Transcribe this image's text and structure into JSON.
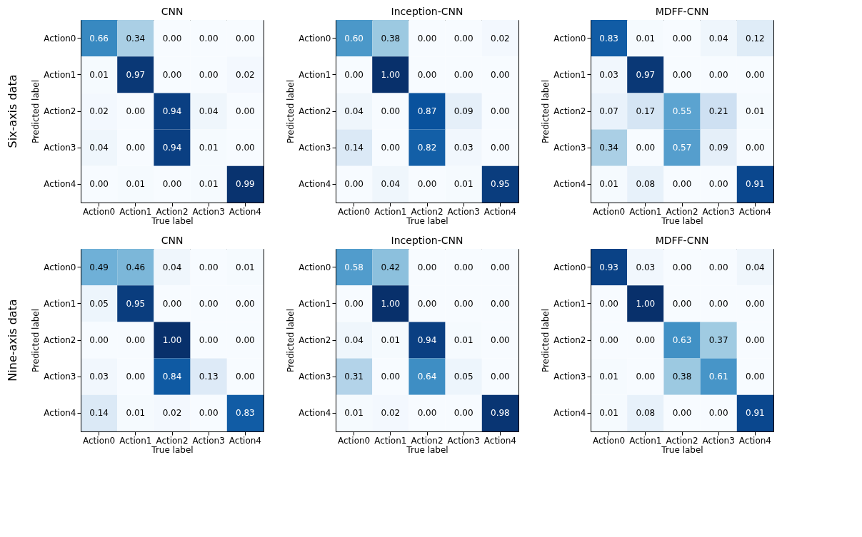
{
  "chart_data": [
    {
      "type": "heatmap",
      "title": "CNN",
      "xlabel": "True label",
      "ylabel": "Predicted label",
      "annotations": [
        "Six-axis data"
      ],
      "data_labels": true,
      "categories": [
        "Action0",
        "Action1",
        "Action2",
        "Action3",
        "Action4"
      ],
      "y_categories": [
        "Action0",
        "Action1",
        "Action2",
        "Action3",
        "Action4"
      ],
      "cells": [
        [
          0.66,
          0.34,
          0.0,
          0.0,
          0.0
        ],
        [
          0.01,
          0.97,
          0.0,
          0.0,
          0.02
        ],
        [
          0.02,
          0.0,
          0.94,
          0.04,
          0.0
        ],
        [
          0.04,
          0.0,
          0.94,
          0.01,
          0.0
        ],
        [
          0.0,
          0.01,
          0.0,
          0.01,
          0.99
        ]
      ],
      "cell_labels": [
        [
          "0.66",
          "0.34",
          "0.00",
          "0.00",
          "0.00"
        ],
        [
          "0.01",
          "0.97",
          "0.00",
          "0.00",
          "0.02"
        ],
        [
          "0.02",
          "0.00",
          "0.94",
          "0.04",
          "0.00"
        ],
        [
          "0.04",
          "0.00",
          "0.94",
          "0.01",
          "0.00"
        ],
        [
          "0.00",
          "0.01",
          "0.00",
          "0.01",
          "0.99"
        ]
      ]
    },
    {
      "type": "heatmap",
      "title": "Inception-CNN",
      "xlabel": "True label",
      "ylabel": "Predicted label",
      "data_labels": true,
      "categories": [
        "Action0",
        "Action1",
        "Action2",
        "Action3",
        "Action4"
      ],
      "y_categories": [
        "Action0",
        "Action1",
        "Action2",
        "Action3",
        "Action4"
      ],
      "cells": [
        [
          0.6,
          0.38,
          0.0,
          0.0,
          0.02
        ],
        [
          0.0,
          1.0,
          0.0,
          0.0,
          0.0
        ],
        [
          0.04,
          0.0,
          0.87,
          0.09,
          0.0
        ],
        [
          0.14,
          0.0,
          0.82,
          0.03,
          0.0
        ],
        [
          0.0,
          0.04,
          0.0,
          0.01,
          0.95
        ]
      ],
      "cell_labels": [
        [
          "0.60",
          "0.38",
          "0.00",
          "0.00",
          "0.02"
        ],
        [
          "0.00",
          "1.00",
          "0.00",
          "0.00",
          "0.00"
        ],
        [
          "0.04",
          "0.00",
          "0.87",
          "0.09",
          "0.00"
        ],
        [
          "0.14",
          "0.00",
          "0.82",
          "0.03",
          "0.00"
        ],
        [
          "0.00",
          "0.04",
          "0.00",
          "0.01",
          "0.95"
        ]
      ]
    },
    {
      "type": "heatmap",
      "title": "MDFF-CNN",
      "xlabel": "True label",
      "ylabel": "Predicted label",
      "data_labels": true,
      "categories": [
        "Action0",
        "Action1",
        "Action2",
        "Action3",
        "Action4"
      ],
      "y_categories": [
        "Action0",
        "Action1",
        "Action2",
        "Action3",
        "Action4"
      ],
      "cells": [
        [
          0.83,
          0.01,
          0.0,
          0.04,
          0.12
        ],
        [
          0.03,
          0.97,
          0.0,
          0.0,
          0.0
        ],
        [
          0.07,
          0.17,
          0.55,
          0.21,
          0.01
        ],
        [
          0.34,
          0.0,
          0.57,
          0.09,
          0.0
        ],
        [
          0.01,
          0.08,
          0.0,
          0.0,
          0.91
        ]
      ],
      "cell_labels": [
        [
          "0.83",
          "0.01",
          "0.00",
          "0.04",
          "0.12"
        ],
        [
          "0.03",
          "0.97",
          "0.00",
          "0.00",
          "0.00"
        ],
        [
          "0.07",
          "0.17",
          "0.55",
          "0.21",
          "0.01"
        ],
        [
          "0.34",
          "0.00",
          "0.57",
          "0.09",
          "0.00"
        ],
        [
          "0.01",
          "0.08",
          "0.00",
          "0.00",
          "0.91"
        ]
      ]
    },
    {
      "type": "heatmap",
      "title": "CNN",
      "xlabel": "True label",
      "ylabel": "Predicted label",
      "annotations": [
        "Nine-axis data"
      ],
      "data_labels": true,
      "categories": [
        "Action0",
        "Action1",
        "Action2",
        "Action3",
        "Action4"
      ],
      "y_categories": [
        "Action0",
        "Action1",
        "Action2",
        "Action3",
        "Action4"
      ],
      "cells": [
        [
          0.49,
          0.46,
          0.04,
          0.0,
          0.01
        ],
        [
          0.05,
          0.95,
          0.0,
          0.0,
          0.0
        ],
        [
          0.0,
          0.0,
          1.0,
          0.0,
          0.0
        ],
        [
          0.03,
          0.0,
          0.84,
          0.13,
          0.0
        ],
        [
          0.14,
          0.01,
          0.02,
          0.0,
          0.83
        ]
      ],
      "cell_labels": [
        [
          "0.49",
          "0.46",
          "0.04",
          "0.00",
          "0.01"
        ],
        [
          "0.05",
          "0.95",
          "0.00",
          "0.00",
          "0.00"
        ],
        [
          "0.00",
          "0.00",
          "1.00",
          "0.00",
          "0.00"
        ],
        [
          "0.03",
          "0.00",
          "0.84",
          "0.13",
          "0.00"
        ],
        [
          "0.14",
          "0.01",
          "0.02",
          "0.00",
          "0.83"
        ]
      ]
    },
    {
      "type": "heatmap",
      "title": "Inception-CNN",
      "xlabel": "True label",
      "ylabel": "Predicted label",
      "data_labels": true,
      "categories": [
        "Action0",
        "Action1",
        "Action2",
        "Action3",
        "Action4"
      ],
      "y_categories": [
        "Action0",
        "Action1",
        "Action2",
        "Action3",
        "Action4"
      ],
      "cells": [
        [
          0.58,
          0.42,
          0.0,
          0.0,
          0.0
        ],
        [
          0.0,
          1.0,
          0.0,
          0.0,
          0.0
        ],
        [
          0.04,
          0.01,
          0.94,
          0.01,
          0.0
        ],
        [
          0.31,
          0.0,
          0.64,
          0.05,
          0.0
        ],
        [
          0.01,
          0.02,
          0.0,
          0.0,
          0.98
        ]
      ],
      "cell_labels": [
        [
          "0.58",
          "0.42",
          "0.00",
          "0.00",
          "0.00"
        ],
        [
          "0.00",
          "1.00",
          "0.00",
          "0.00",
          "0.00"
        ],
        [
          "0.04",
          "0.01",
          "0.94",
          "0.01",
          "0.00"
        ],
        [
          "0.31",
          "0.00",
          "0.64",
          "0.05",
          "0.00"
        ],
        [
          "0.01",
          "0.02",
          "0.00",
          "0.00",
          "0.98"
        ]
      ]
    },
    {
      "type": "heatmap",
      "title": "MDFF-CNN",
      "xlabel": "True label",
      "ylabel": "Predicted label",
      "data_labels": true,
      "categories": [
        "Action0",
        "Action1",
        "Action2",
        "Action3",
        "Action4"
      ],
      "y_categories": [
        "Action0",
        "Action1",
        "Action2",
        "Action3",
        "Action4"
      ],
      "cells": [
        [
          0.93,
          0.03,
          0.0,
          0.0,
          0.04
        ],
        [
          0.0,
          1.0,
          0.0,
          0.0,
          0.0
        ],
        [
          0.0,
          0.0,
          0.63,
          0.37,
          0.0
        ],
        [
          0.01,
          0.0,
          0.38,
          0.61,
          0.0
        ],
        [
          0.01,
          0.08,
          0.0,
          0.0,
          0.91
        ]
      ],
      "cell_labels": [
        [
          "0.93",
          "0.03",
          "0.00",
          "0.00",
          "0.04"
        ],
        [
          "0.00",
          "1.00",
          "0.00",
          "0.00",
          "0.00"
        ],
        [
          "0.00",
          "0.00",
          "0.63",
          "0.37",
          "0.00"
        ],
        [
          "0.01",
          "0.00",
          "0.38",
          "0.61",
          "0.00"
        ],
        [
          "0.01",
          "0.08",
          "0.00",
          "0.00",
          "0.91"
        ]
      ]
    }
  ]
}
